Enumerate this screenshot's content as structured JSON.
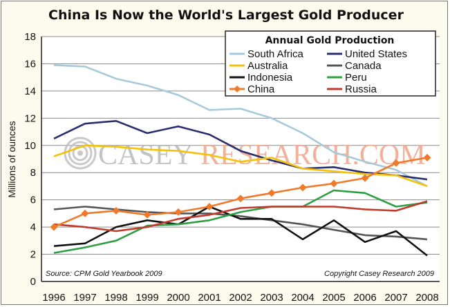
{
  "chart_data": {
    "type": "line",
    "title": "China Is Now the World's Largest Gold Producer",
    "ylabel": "Millions of ounces",
    "xlabel": "",
    "x": [
      1996,
      1997,
      1998,
      1999,
      2000,
      2001,
      2002,
      2003,
      2004,
      2005,
      2006,
      2007,
      2008
    ],
    "ylim": [
      0,
      18
    ],
    "yticks": [
      0,
      2,
      4,
      6,
      8,
      10,
      12,
      14,
      16,
      18
    ],
    "grid": true,
    "legend": {
      "title": "Annual Gold Production",
      "placement": "top-right"
    },
    "series": [
      {
        "name": "South Africa",
        "color": "#a7c9dc",
        "marker": "none",
        "values": [
          15.9,
          15.8,
          14.9,
          14.4,
          13.7,
          12.6,
          12.7,
          12.0,
          10.9,
          9.5,
          8.8,
          8.2,
          7.0
        ]
      },
      {
        "name": "United States",
        "color": "#2a2e6e",
        "marker": "none",
        "values": [
          10.5,
          11.6,
          11.8,
          10.9,
          11.4,
          10.8,
          9.6,
          8.9,
          8.3,
          8.4,
          8.0,
          7.8,
          7.5
        ]
      },
      {
        "name": "Australia",
        "color": "#f5c20a",
        "marker": "none",
        "values": [
          9.2,
          10.0,
          9.9,
          9.7,
          9.6,
          9.3,
          8.8,
          9.1,
          8.3,
          8.1,
          7.9,
          7.8,
          7.0
        ]
      },
      {
        "name": "Canada",
        "color": "#555555",
        "marker": "none",
        "values": [
          5.3,
          5.5,
          5.3,
          5.1,
          5.0,
          5.0,
          4.8,
          4.5,
          4.2,
          3.8,
          3.4,
          3.3,
          3.1
        ]
      },
      {
        "name": "Indonesia",
        "color": "#111111",
        "marker": "none",
        "values": [
          2.6,
          2.8,
          4.0,
          4.5,
          4.2,
          5.5,
          4.6,
          4.6,
          3.1,
          4.5,
          2.9,
          3.7,
          1.9
        ]
      },
      {
        "name": "Peru",
        "color": "#2ea043",
        "marker": "none",
        "values": [
          2.1,
          2.5,
          3.0,
          4.1,
          4.2,
          4.5,
          5.1,
          5.5,
          5.5,
          6.7,
          6.5,
          5.5,
          5.8
        ]
      },
      {
        "name": "China",
        "color": "#f07a2a",
        "marker": "diamond",
        "values": [
          4.0,
          5.0,
          5.2,
          4.9,
          5.1,
          5.5,
          6.1,
          6.5,
          6.9,
          7.2,
          7.6,
          8.7,
          9.1
        ]
      },
      {
        "name": "Russia",
        "color": "#c0392b",
        "marker": "none",
        "values": [
          4.2,
          4.0,
          3.7,
          4.0,
          4.6,
          4.9,
          5.4,
          5.5,
          5.5,
          5.5,
          5.3,
          5.2,
          5.9
        ]
      }
    ],
    "annotations": {
      "source": "Source: CPM Gold Yearbook 2009",
      "copyright": "Copyright Casey Research 2009"
    },
    "watermark": {
      "left": "CASEY",
      "right": "RESEARCH.COM"
    }
  }
}
